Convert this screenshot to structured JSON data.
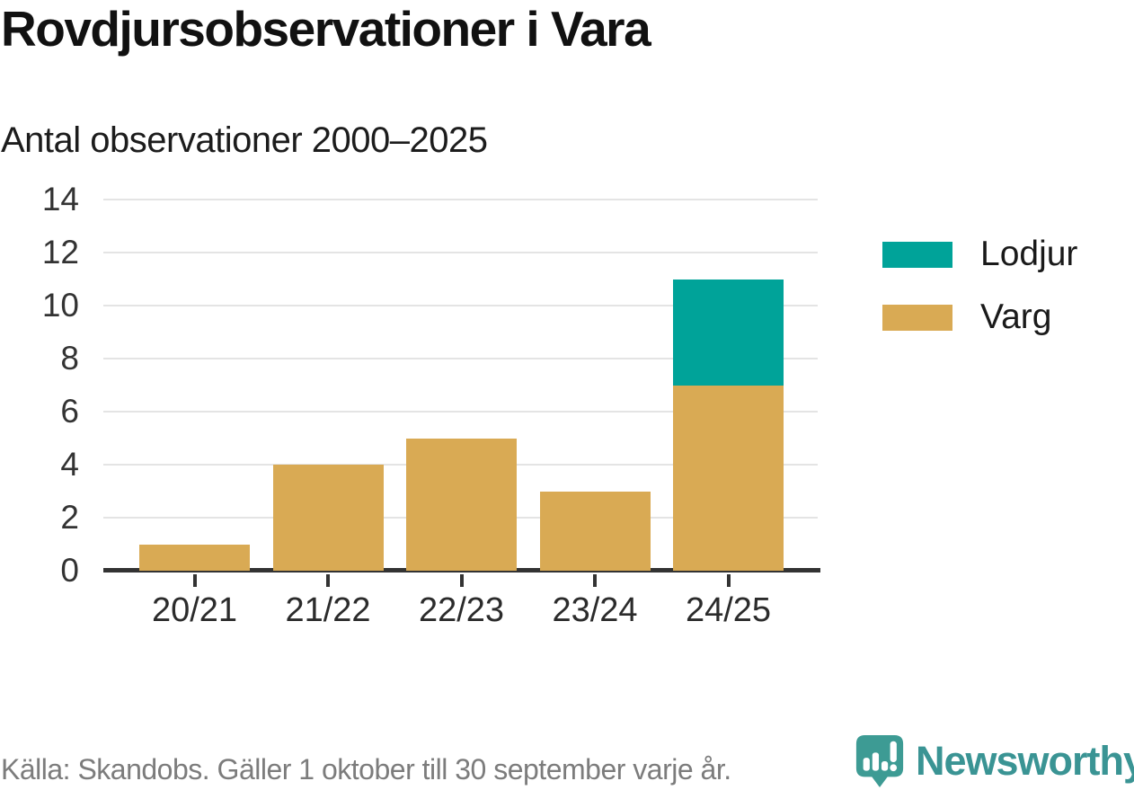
{
  "title": "Rovdjursobservationer i Vara",
  "subtitle": "Antal observationer 2000–2025",
  "legend": {
    "items": [
      {
        "label": "Lodjur",
        "color": "#00a399"
      },
      {
        "label": "Varg",
        "color": "#d9aa54"
      }
    ]
  },
  "footer": {
    "source": "Källa: Skandobs. Gäller 1 oktober till 30 september varje år.",
    "brand": "Newsworthy"
  },
  "colors": {
    "lodjur": "#00a399",
    "varg": "#d9aa54",
    "axis": "#333333",
    "gridline": "#e4e4e4",
    "source_text": "#7c7c7c",
    "brand_teal": "#3a9494",
    "logo_bubble": "#3d9b94"
  },
  "chart_data": {
    "type": "bar",
    "stacked": true,
    "title": "Rovdjursobservationer i Vara",
    "subtitle": "Antal observationer 2000–2025",
    "categories": [
      "20/21",
      "21/22",
      "22/23",
      "23/24",
      "24/25"
    ],
    "series": [
      {
        "name": "Varg",
        "color": "#d9aa54",
        "values": [
          1,
          4,
          5,
          3,
          7
        ]
      },
      {
        "name": "Lodjur",
        "color": "#00a399",
        "values": [
          0,
          0,
          0,
          0,
          4
        ]
      }
    ],
    "totals": [
      1,
      4,
      5,
      3,
      11
    ],
    "xlabel": "",
    "ylabel": "",
    "ylim": [
      0,
      14
    ],
    "yticks": [
      0,
      2,
      4,
      6,
      8,
      10,
      12,
      14
    ],
    "grid": "horizontal-only",
    "legend_position": "right"
  }
}
